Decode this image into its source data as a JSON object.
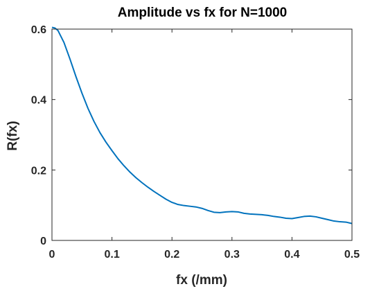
{
  "chart_data": {
    "type": "line",
    "title": "Amplitude vs fx for N=1000",
    "xlabel": "fx (/mm)",
    "ylabel": "R(fx)",
    "xlim": [
      0,
      0.5
    ],
    "ylim": [
      0,
      0.6
    ],
    "xticks": [
      0,
      0.1,
      0.2,
      0.3,
      0.4,
      0.5
    ],
    "xtick_labels": [
      "0",
      "0.1",
      "0.2",
      "0.3",
      "0.4",
      "0.5"
    ],
    "yticks": [
      0,
      0.2,
      0.4,
      0.6
    ],
    "ytick_labels": [
      "0",
      "0.2",
      "0.4",
      "0.6"
    ],
    "grid": false,
    "series": [
      {
        "color": "#0072BD",
        "x": [
          0,
          0.005,
          0.01,
          0.02,
          0.03,
          0.04,
          0.05,
          0.06,
          0.07,
          0.08,
          0.09,
          0.1,
          0.11,
          0.12,
          0.13,
          0.14,
          0.15,
          0.16,
          0.17,
          0.18,
          0.19,
          0.2,
          0.21,
          0.22,
          0.23,
          0.24,
          0.25,
          0.26,
          0.27,
          0.28,
          0.29,
          0.3,
          0.31,
          0.32,
          0.33,
          0.34,
          0.35,
          0.36,
          0.37,
          0.38,
          0.39,
          0.4,
          0.41,
          0.42,
          0.43,
          0.44,
          0.45,
          0.46,
          0.47,
          0.48,
          0.49,
          0.5
        ],
        "values": [
          0.605,
          0.603,
          0.596,
          0.562,
          0.515,
          0.465,
          0.418,
          0.375,
          0.338,
          0.306,
          0.279,
          0.255,
          0.232,
          0.212,
          0.194,
          0.178,
          0.164,
          0.151,
          0.139,
          0.128,
          0.117,
          0.108,
          0.102,
          0.099,
          0.097,
          0.095,
          0.091,
          0.085,
          0.08,
          0.079,
          0.081,
          0.082,
          0.081,
          0.077,
          0.075,
          0.074,
          0.073,
          0.071,
          0.068,
          0.066,
          0.063,
          0.062,
          0.065,
          0.068,
          0.069,
          0.067,
          0.063,
          0.059,
          0.055,
          0.053,
          0.052,
          0.048
        ]
      }
    ]
  }
}
